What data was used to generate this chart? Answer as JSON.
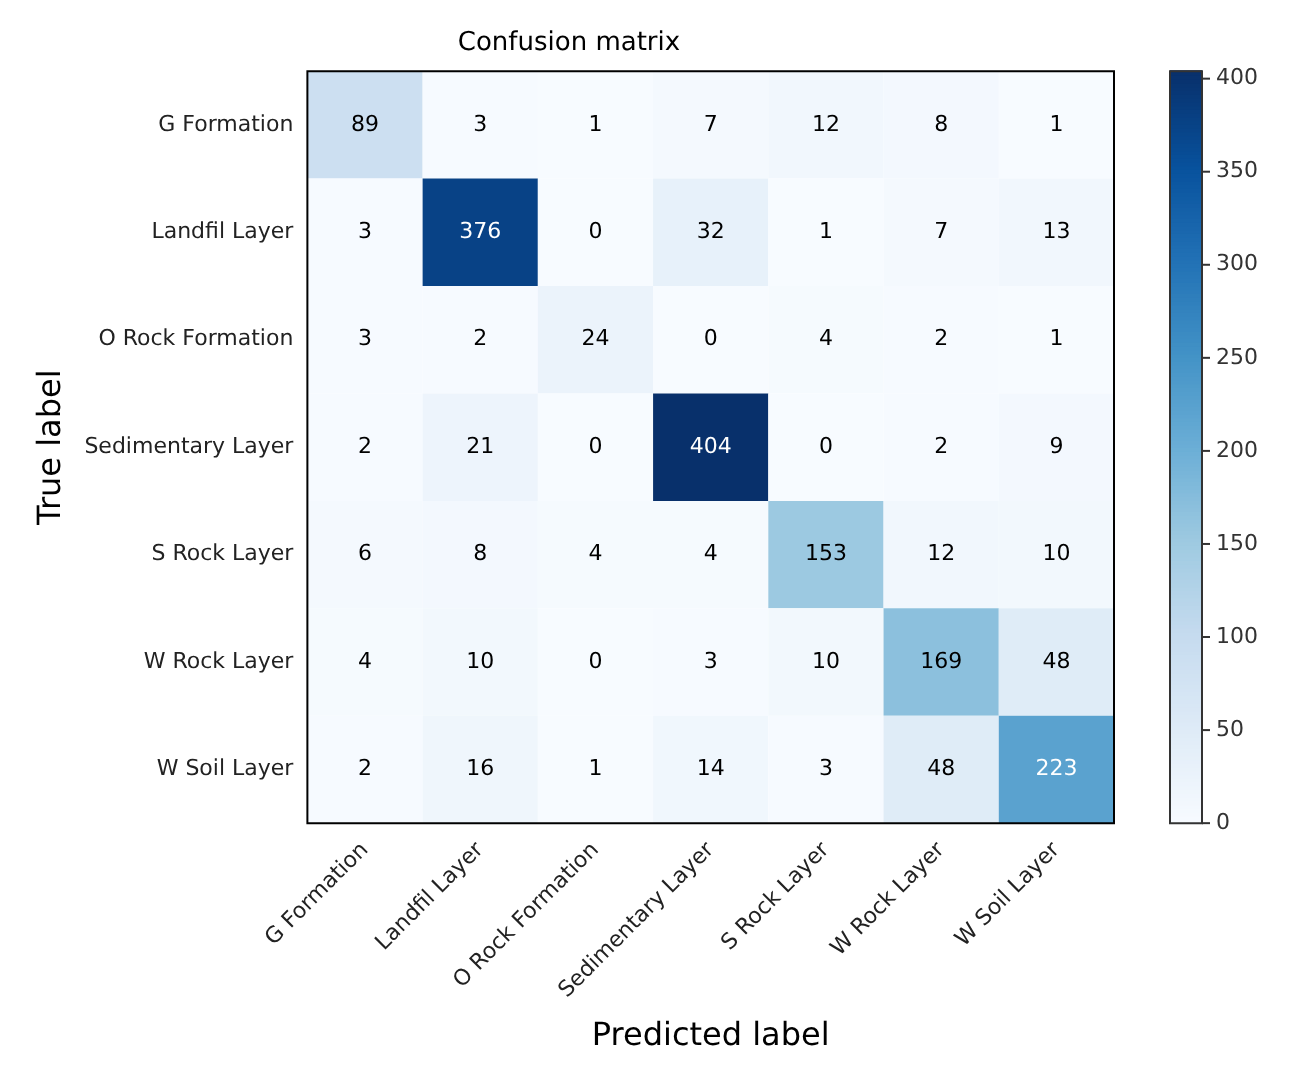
{
  "chart_data": {
    "type": "heatmap",
    "title": "Confusion matrix",
    "xlabel": "Predicted label",
    "ylabel": "True label",
    "categories": [
      "G Formation",
      "Landfil Layer",
      "O Rock Formation",
      "Sedimentary Layer",
      "S Rock Layer",
      "W Rock Layer",
      "W Soil Layer"
    ],
    "y_categories": [
      "G Formation",
      "Landfil Layer",
      "O Rock Formation",
      "Sedimentary Layer",
      "S Rock Layer",
      "W Rock Layer",
      "W Soil Layer"
    ],
    "cells": [
      [
        89,
        3,
        1,
        7,
        12,
        8,
        1
      ],
      [
        3,
        376,
        0,
        32,
        1,
        7,
        13
      ],
      [
        3,
        2,
        24,
        0,
        4,
        2,
        1
      ],
      [
        2,
        21,
        0,
        404,
        0,
        2,
        9
      ],
      [
        6,
        8,
        4,
        4,
        153,
        12,
        10
      ],
      [
        4,
        10,
        0,
        3,
        10,
        169,
        48
      ],
      [
        2,
        16,
        1,
        14,
        3,
        48,
        223
      ]
    ],
    "data_labels": true,
    "clim": [
      0,
      404
    ],
    "cticks": [
      0,
      50,
      100,
      150,
      200,
      250,
      300,
      350,
      400
    ]
  }
}
